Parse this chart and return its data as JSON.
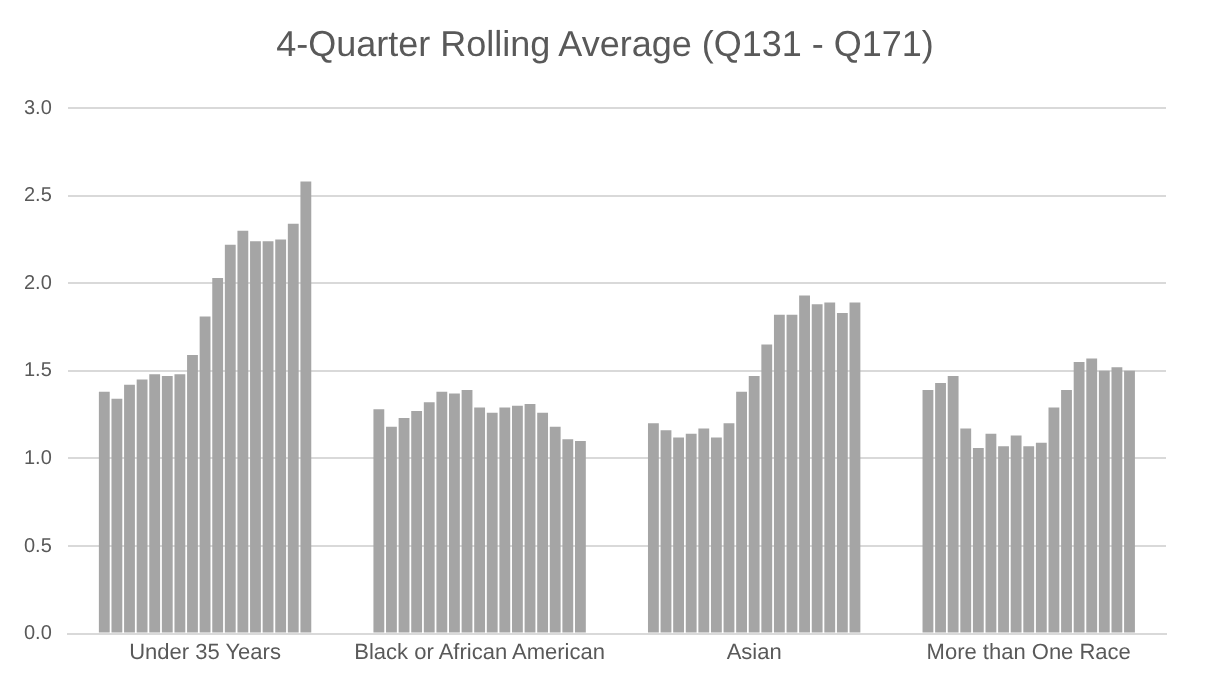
{
  "chart_data": {
    "type": "bar",
    "title": "4-Quarter Rolling Average (Q131 - Q171)",
    "categories": [
      "Under 35 Years",
      "Black or African American",
      "Asian",
      "More than One Race"
    ],
    "series": [
      {
        "color": "#a5a5a5",
        "values": [
          1.38,
          1.28,
          1.2,
          1.39
        ]
      },
      {
        "color": "#a5a5a5",
        "values": [
          1.34,
          1.18,
          1.16,
          1.43
        ]
      },
      {
        "color": "#a5a5a5",
        "values": [
          1.42,
          1.23,
          1.12,
          1.47
        ]
      },
      {
        "color": "#a5a5a5",
        "values": [
          1.45,
          1.27,
          1.14,
          1.17
        ]
      },
      {
        "color": "#a5a5a5",
        "values": [
          1.48,
          1.32,
          1.17,
          1.06
        ]
      },
      {
        "color": "#a5a5a5",
        "values": [
          1.47,
          1.38,
          1.12,
          1.14
        ]
      },
      {
        "color": "#a5a5a5",
        "values": [
          1.48,
          1.37,
          1.2,
          1.07
        ]
      },
      {
        "color": "#a5a5a5",
        "values": [
          1.59,
          1.39,
          1.38,
          1.13
        ]
      },
      {
        "color": "#a5a5a5",
        "values": [
          1.81,
          1.29,
          1.47,
          1.07
        ]
      },
      {
        "color": "#a5a5a5",
        "values": [
          2.03,
          1.26,
          1.65,
          1.09
        ]
      },
      {
        "color": "#a5a5a5",
        "values": [
          2.22,
          1.29,
          1.82,
          1.29
        ]
      },
      {
        "color": "#a5a5a5",
        "values": [
          2.3,
          1.3,
          1.82,
          1.39
        ]
      },
      {
        "color": "#a5a5a5",
        "values": [
          2.24,
          1.31,
          1.93,
          1.55
        ]
      },
      {
        "color": "#a5a5a5",
        "values": [
          2.24,
          1.26,
          1.88,
          1.57
        ]
      },
      {
        "color": "#a5a5a5",
        "values": [
          2.25,
          1.18,
          1.89,
          1.5
        ]
      },
      {
        "color": "#a5a5a5",
        "values": [
          2.34,
          1.11,
          1.83,
          1.52
        ]
      },
      {
        "color": "#a5a5a5",
        "values": [
          2.58,
          1.1,
          1.89,
          1.5
        ]
      }
    ],
    "ylim": [
      0,
      3
    ],
    "yticks": [
      {
        "value": 0,
        "label": "0.0"
      },
      0.5,
      {
        "value": 1,
        "label": "1.0"
      },
      1.5,
      {
        "value": 2,
        "label": "2.0"
      },
      2.5,
      {
        "value": 3,
        "label": "3.0"
      }
    ],
    "grid": "y",
    "legend": false
  }
}
